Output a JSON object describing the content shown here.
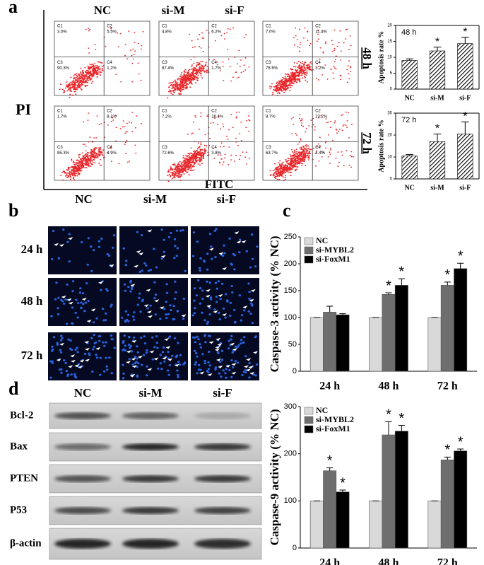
{
  "panel_a": {
    "label": "a",
    "columns": [
      "NC",
      "si-M",
      "si-F"
    ],
    "rows": [
      "48 h",
      "72 h"
    ],
    "y_axis_label": "PI",
    "x_axis_label": "FITC",
    "plots": [
      [
        [
          {
            "name": "C1",
            "value": "3.0%"
          },
          {
            "name": "C2",
            "value": "5.5%"
          },
          {
            "name": "C3",
            "value": "90.3%"
          },
          {
            "name": "C4",
            "value": "1.2%"
          }
        ],
        [
          {
            "name": "C1",
            "value": "4.8%"
          },
          {
            "name": "C2",
            "value": "6.2%"
          },
          {
            "name": "C3",
            "value": "87.4%"
          },
          {
            "name": "C4",
            "value": "1.7%"
          }
        ],
        [
          {
            "name": "C1",
            "value": "7.0%"
          },
          {
            "name": "C2",
            "value": "11.4%"
          },
          {
            "name": "C3",
            "value": "78.5%"
          },
          {
            "name": "C4",
            "value": "3.2%"
          }
        ]
      ],
      [
        [
          {
            "name": "C1",
            "value": "1.7%"
          },
          {
            "name": "C2",
            "value": "8.1%"
          },
          {
            "name": "C3",
            "value": "85.3%"
          },
          {
            "name": "C4",
            "value": "4.9%"
          }
        ],
        [
          {
            "name": "C1",
            "value": "7.2%"
          },
          {
            "name": "C2",
            "value": "16.4%"
          },
          {
            "name": "C3",
            "value": "72.6%"
          },
          {
            "name": "C4",
            "value": "3.8%"
          }
        ],
        [
          {
            "name": "C1",
            "value": "8.7%"
          },
          {
            "name": "C2",
            "value": "23.2%"
          },
          {
            "name": "C3",
            "value": "63.7%"
          },
          {
            "name": "C4",
            "value": "4.4%"
          }
        ]
      ]
    ]
  },
  "panel_b": {
    "label": "b",
    "columns": [
      "NC",
      "si-M",
      "si-F"
    ],
    "rows": [
      "24 h",
      "48 h",
      "72 h"
    ]
  },
  "panel_c": {
    "label": "c"
  },
  "panel_d": {
    "label": "d",
    "columns": [
      "NC",
      "si-M",
      "si-F"
    ],
    "proteins": [
      "Bcl-2",
      "Bax",
      "PTEN",
      "P53",
      "β-actin"
    ]
  },
  "chart_data": [
    {
      "type": "bar",
      "title": "48 h",
      "y_label": "Apoptosis rate %",
      "categories": [
        "NC",
        "si-M",
        "si-F"
      ],
      "values": [
        9,
        12,
        14.3
      ],
      "errors": [
        0.5,
        1.2,
        2
      ],
      "stars": [
        null,
        "*",
        "*"
      ],
      "color": "#000000",
      "hatch": true,
      "ylim": [
        0,
        20
      ],
      "yticks": [
        0,
        5,
        10,
        15,
        20
      ]
    },
    {
      "type": "bar",
      "title": "72 h",
      "y_label": "Apoptosis rate %",
      "categories": [
        "NC",
        "si-M",
        "si-F"
      ],
      "values": [
        10.5,
        17,
        20.5
      ],
      "errors": [
        0.6,
        3.5,
        5.5
      ],
      "stars": [
        null,
        "*",
        "*"
      ],
      "color": "#000000",
      "hatch": true,
      "ylim": [
        0,
        30
      ],
      "yticks": [
        0,
        10,
        20,
        30
      ]
    },
    {
      "type": "grouped-bar",
      "y_label": "Caspase-3 activity (% NC)",
      "categories": [
        "24 h",
        "48 h",
        "72 h"
      ],
      "series": [
        {
          "name": "NC",
          "color": "#d9d9d9",
          "values": [
            100,
            100,
            100
          ],
          "errors": [
            0,
            0,
            0
          ],
          "stars": [
            null,
            null,
            null
          ]
        },
        {
          "name": "si-MYBL2",
          "color": "#6e6e6e",
          "values": [
            110,
            143,
            160
          ],
          "errors": [
            11,
            3,
            6
          ],
          "stars": [
            null,
            "*",
            "*"
          ]
        },
        {
          "name": "si-FoxM1",
          "color": "#000000",
          "values": [
            105,
            160,
            191
          ],
          "errors": [
            2,
            12,
            10
          ],
          "stars": [
            null,
            "*",
            "*"
          ]
        }
      ],
      "ylim": [
        0,
        250
      ],
      "yticks": [
        0,
        50,
        100,
        150,
        200,
        250
      ]
    },
    {
      "type": "grouped-bar",
      "y_label": "Caspase-9 activity (% NC)",
      "categories": [
        "24 h",
        "48 h",
        "72 h"
      ],
      "series": [
        {
          "name": "NC",
          "color": "#d9d9d9",
          "values": [
            100,
            100,
            100
          ],
          "errors": [
            0,
            0,
            0
          ],
          "stars": [
            null,
            null,
            null
          ]
        },
        {
          "name": "si-MYBL2",
          "color": "#6e6e6e",
          "values": [
            164,
            240,
            187
          ],
          "errors": [
            6,
            28,
            6
          ],
          "stars": [
            "*",
            "*",
            "*"
          ]
        },
        {
          "name": "si-FoxM1",
          "color": "#000000",
          "values": [
            119,
            248,
            206
          ],
          "errors": [
            4,
            12,
            4
          ],
          "stars": [
            "*",
            "*",
            "*"
          ]
        }
      ],
      "ylim": [
        0,
        300
      ],
      "yticks": [
        0,
        100,
        200,
        300
      ]
    }
  ]
}
